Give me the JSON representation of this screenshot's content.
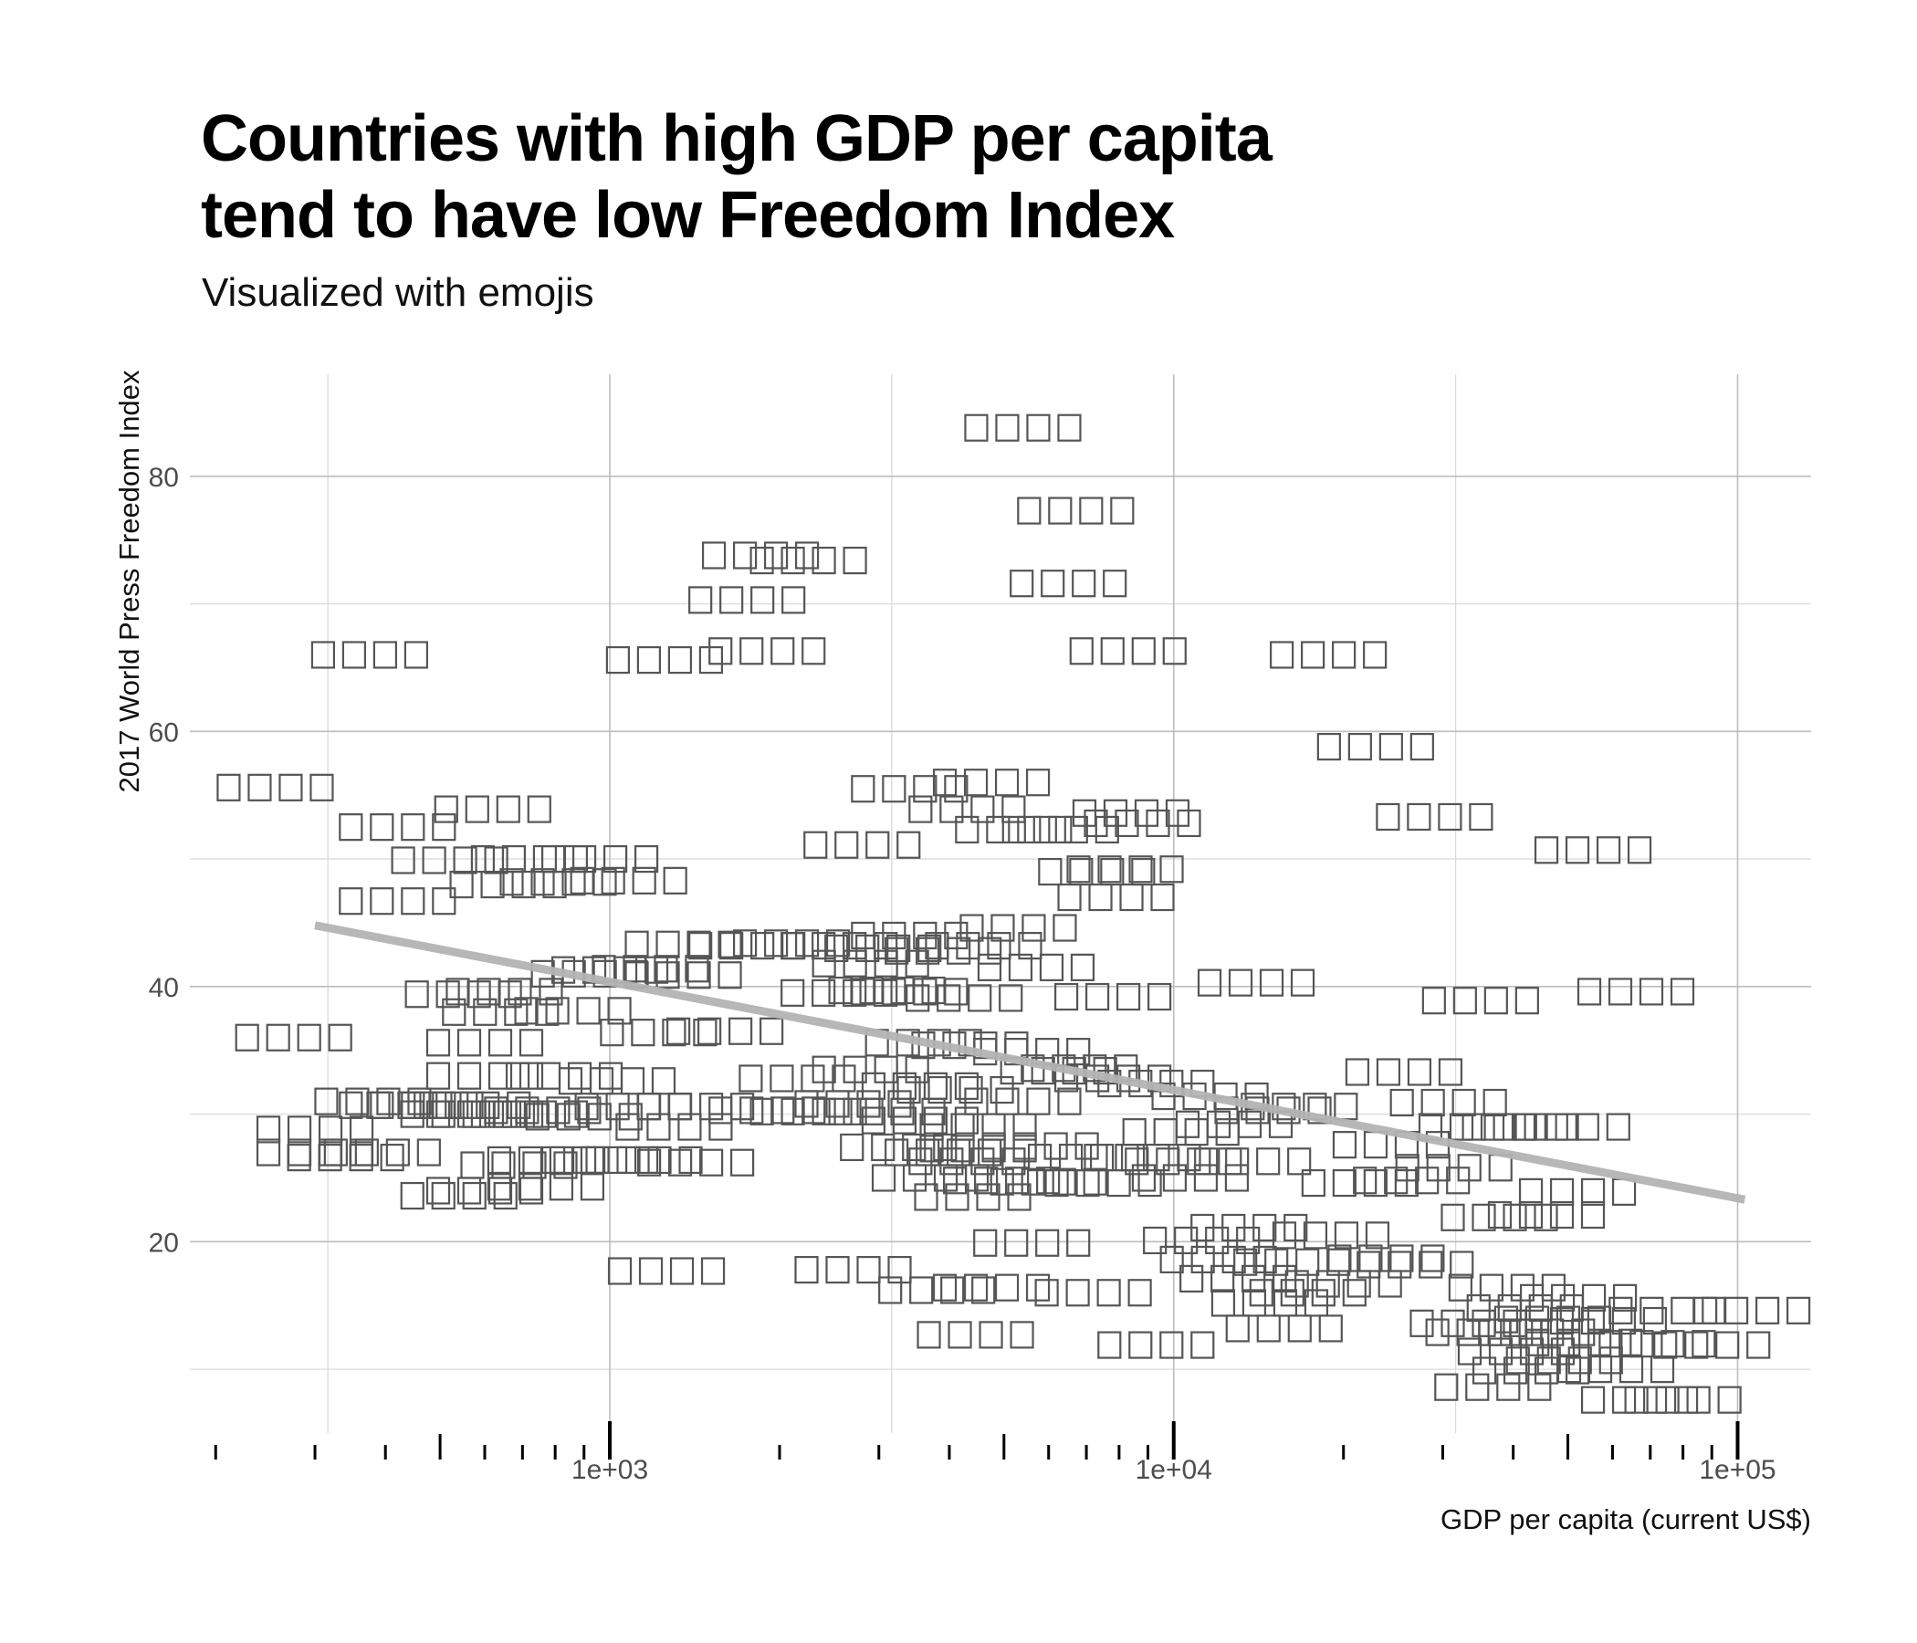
{
  "title_lines": [
    "Countries with high GDP per capita",
    "tend to have low Freedom Index"
  ],
  "subtitle": "Visualized with emojis",
  "chart_data": {
    "type": "scatter",
    "title": "Countries with high GDP per capita tend to have low Freedom Index",
    "subtitle": "Visualized with emojis",
    "xlabel": "GDP per capita (current US$)",
    "ylabel": "2017 World Press Freedom Index",
    "x_scale": "log10",
    "xlim": [
      180,
      135000
    ],
    "ylim": [
      5,
      88
    ],
    "grid": true,
    "legend": "none",
    "marker": "four unrendered emoji glyph boxes per country",
    "x_ticks": [
      {
        "value": 1000,
        "label": "1e+03"
      },
      {
        "value": 10000,
        "label": "1e+04"
      },
      {
        "value": 100000,
        "label": "1e+05"
      }
    ],
    "y_ticks": [
      {
        "value": 20,
        "label": "20"
      },
      {
        "value": 40,
        "label": "40"
      },
      {
        "value": 60,
        "label": "60"
      },
      {
        "value": 80,
        "label": "80"
      }
    ],
    "trend_line": {
      "x": [
        300,
        103000
      ],
      "y": [
        44.8,
        23.3
      ],
      "color": "#b3b3b3"
    },
    "points": [
      {
        "x": 255,
        "y": 55.6
      },
      {
        "x": 375,
        "y": 66.0
      },
      {
        "x": 275,
        "y": 36.0
      },
      {
        "x": 300,
        "y": 28.8
      },
      {
        "x": 300,
        "y": 27.0
      },
      {
        "x": 340,
        "y": 26.6
      },
      {
        "x": 395,
        "y": 27.0
      },
      {
        "x": 420,
        "y": 52.5
      },
      {
        "x": 420,
        "y": 46.7
      },
      {
        "x": 380,
        "y": 31.0
      },
      {
        "x": 420,
        "y": 30.7
      },
      {
        "x": 470,
        "y": 30.7
      },
      {
        "x": 550,
        "y": 39.4
      },
      {
        "x": 520,
        "y": 49.9
      },
      {
        "x": 540,
        "y": 23.6
      },
      {
        "x": 600,
        "y": 24.0
      },
      {
        "x": 570,
        "y": 30.7
      },
      {
        "x": 540,
        "y": 30.0
      },
      {
        "x": 600,
        "y": 35.6
      },
      {
        "x": 620,
        "y": 53.9
      },
      {
        "x": 650,
        "y": 39.6
      },
      {
        "x": 600,
        "y": 33.0
      },
      {
        "x": 600,
        "y": 30.0
      },
      {
        "x": 640,
        "y": 38.0
      },
      {
        "x": 660,
        "y": 48.0
      },
      {
        "x": 720,
        "y": 50.0
      },
      {
        "x": 720,
        "y": 30.0
      },
      {
        "x": 690,
        "y": 26.0
      },
      {
        "x": 810,
        "y": 48.2
      },
      {
        "x": 770,
        "y": 26.4
      },
      {
        "x": 770,
        "y": 24.3
      },
      {
        "x": 760,
        "y": 30.3
      },
      {
        "x": 860,
        "y": 38.1
      },
      {
        "x": 830,
        "y": 33.0
      },
      {
        "x": 920,
        "y": 41.0
      },
      {
        "x": 900,
        "y": 29.8
      },
      {
        "x": 1000,
        "y": 41.3
      },
      {
        "x": 960,
        "y": 26.4
      },
      {
        "x": 960,
        "y": 50.0
      },
      {
        "x": 1080,
        "y": 48.3
      },
      {
        "x": 1030,
        "y": 32.6
      },
      {
        "x": 1180,
        "y": 41.4
      },
      {
        "x": 1100,
        "y": 30.6
      },
      {
        "x": 1150,
        "y": 26.4
      },
      {
        "x": 1220,
        "y": 36.4
      },
      {
        "x": 1260,
        "y": 17.7
      },
      {
        "x": 1300,
        "y": 29.0
      },
      {
        "x": 1250,
        "y": 65.6
      },
      {
        "x": 1350,
        "y": 43.3
      },
      {
        "x": 1350,
        "y": 40.9
      },
      {
        "x": 1420,
        "y": 26.2
      },
      {
        "x": 1420,
        "y": 30.6
      },
      {
        "x": 1600,
        "y": 36.5
      },
      {
        "x": 1750,
        "y": 70.3
      },
      {
        "x": 1750,
        "y": 43.2
      },
      {
        "x": 1850,
        "y": 73.8
      },
      {
        "x": 1900,
        "y": 66.3
      },
      {
        "x": 1900,
        "y": 30.3
      },
      {
        "x": 2250,
        "y": 30.2
      },
      {
        "x": 2100,
        "y": 43.4
      },
      {
        "x": 2150,
        "y": 32.8
      },
      {
        "x": 2250,
        "y": 73.4
      },
      {
        "x": 2550,
        "y": 43.2
      },
      {
        "x": 2550,
        "y": 39.5
      },
      {
        "x": 2700,
        "y": 17.8
      },
      {
        "x": 2700,
        "y": 30.8
      },
      {
        "x": 2800,
        "y": 51.1
      },
      {
        "x": 2900,
        "y": 41.8
      },
      {
        "x": 2900,
        "y": 33.5
      },
      {
        "x": 3050,
        "y": 43.0
      },
      {
        "x": 3100,
        "y": 39.7
      },
      {
        "x": 3100,
        "y": 30.2
      },
      {
        "x": 3250,
        "y": 27.4
      },
      {
        "x": 3400,
        "y": 55.5
      },
      {
        "x": 3400,
        "y": 44.0
      },
      {
        "x": 3400,
        "y": 39.6
      },
      {
        "x": 3550,
        "y": 32.2
      },
      {
        "x": 3550,
        "y": 29.5
      },
      {
        "x": 3600,
        "y": 35.6
      },
      {
        "x": 3700,
        "y": 25.0
      },
      {
        "x": 3800,
        "y": 16.2
      },
      {
        "x": 3900,
        "y": 27.0
      },
      {
        "x": 3900,
        "y": 42.8
      },
      {
        "x": 4100,
        "y": 31.9
      },
      {
        "x": 4250,
        "y": 39.1
      },
      {
        "x": 4300,
        "y": 26.3
      },
      {
        "x": 4300,
        "y": 53.9
      },
      {
        "x": 4350,
        "y": 35.4
      },
      {
        "x": 4400,
        "y": 23.5
      },
      {
        "x": 4450,
        "y": 12.7
      },
      {
        "x": 4500,
        "y": 29.0
      },
      {
        "x": 4500,
        "y": 27.3
      },
      {
        "x": 4600,
        "y": 43.2
      },
      {
        "x": 4750,
        "y": 16.4
      },
      {
        "x": 4750,
        "y": 56.0
      },
      {
        "x": 4950,
        "y": 24.8
      },
      {
        "x": 5200,
        "y": 52.3
      },
      {
        "x": 5300,
        "y": 44.6
      },
      {
        "x": 5400,
        "y": 31.0
      },
      {
        "x": 5400,
        "y": 83.8
      },
      {
        "x": 5600,
        "y": 19.9
      },
      {
        "x": 5700,
        "y": 41.5
      },
      {
        "x": 5600,
        "y": 34.9
      },
      {
        "x": 5800,
        "y": 27.5
      },
      {
        "x": 6000,
        "y": 24.7
      },
      {
        "x": 6250,
        "y": 33.4
      },
      {
        "x": 6300,
        "y": 52.3
      },
      {
        "x": 6500,
        "y": 71.6
      },
      {
        "x": 6700,
        "y": 77.3
      },
      {
        "x": 6800,
        "y": 33.6
      },
      {
        "x": 7000,
        "y": 26.6
      },
      {
        "x": 7200,
        "y": 16.0
      },
      {
        "x": 7300,
        "y": 49.0
      },
      {
        "x": 7500,
        "y": 24.6
      },
      {
        "x": 7800,
        "y": 39.2
      },
      {
        "x": 7800,
        "y": 32.8
      },
      {
        "x": 7900,
        "y": 47.0
      },
      {
        "x": 8200,
        "y": 49.2
      },
      {
        "x": 8300,
        "y": 66.3
      },
      {
        "x": 8400,
        "y": 53.6
      },
      {
        "x": 8800,
        "y": 26.6
      },
      {
        "x": 8800,
        "y": 52.8
      },
      {
        "x": 9300,
        "y": 32.4
      },
      {
        "x": 9300,
        "y": 11.9
      },
      {
        "x": 10300,
        "y": 28.6
      },
      {
        "x": 10400,
        "y": 26.3
      },
      {
        "x": 10700,
        "y": 25.0
      },
      {
        "x": 11200,
        "y": 20.1
      },
      {
        "x": 11600,
        "y": 31.4
      },
      {
        "x": 12000,
        "y": 18.6
      },
      {
        "x": 12800,
        "y": 29.2
      },
      {
        "x": 13000,
        "y": 17.1
      },
      {
        "x": 13600,
        "y": 21.1
      },
      {
        "x": 13800,
        "y": 26.3
      },
      {
        "x": 14000,
        "y": 40.3
      },
      {
        "x": 14800,
        "y": 15.2
      },
      {
        "x": 15000,
        "y": 30.3
      },
      {
        "x": 15700,
        "y": 13.2
      },
      {
        "x": 16200,
        "y": 18.4
      },
      {
        "x": 16700,
        "y": 30.6
      },
      {
        "x": 17300,
        "y": 16.0
      },
      {
        "x": 18800,
        "y": 66.0
      },
      {
        "x": 19000,
        "y": 20.5
      },
      {
        "x": 20000,
        "y": 16.7
      },
      {
        "x": 21400,
        "y": 24.6
      },
      {
        "x": 22800,
        "y": 58.8
      },
      {
        "x": 23800,
        "y": 18.7
      },
      {
        "x": 24300,
        "y": 27.6
      },
      {
        "x": 25600,
        "y": 33.3
      },
      {
        "x": 26400,
        "y": 24.8
      },
      {
        "x": 26800,
        "y": 18.2
      },
      {
        "x": 29000,
        "y": 53.3
      },
      {
        "x": 30700,
        "y": 30.9
      },
      {
        "x": 31400,
        "y": 25.8
      },
      {
        "x": 33300,
        "y": 13.6
      },
      {
        "x": 34500,
        "y": 29.0
      },
      {
        "x": 35000,
        "y": 38.9
      },
      {
        "x": 35500,
        "y": 12.9
      },
      {
        "x": 36800,
        "y": 8.6
      },
      {
        "x": 37800,
        "y": 21.9
      },
      {
        "x": 39000,
        "y": 16.4
      },
      {
        "x": 40500,
        "y": 11.4
      },
      {
        "x": 41200,
        "y": 29.0
      },
      {
        "x": 42000,
        "y": 14.8
      },
      {
        "x": 43000,
        "y": 9.9
      },
      {
        "x": 44000,
        "y": 12.9
      },
      {
        "x": 45800,
        "y": 22.1
      },
      {
        "x": 47000,
        "y": 13.9
      },
      {
        "x": 49300,
        "y": 10.7
      },
      {
        "x": 50800,
        "y": 29.0
      },
      {
        "x": 52000,
        "y": 23.9
      },
      {
        "x": 52200,
        "y": 15.6
      },
      {
        "x": 53400,
        "y": 12.1
      },
      {
        "x": 55400,
        "y": 50.7
      },
      {
        "x": 59000,
        "y": 13.8
      },
      {
        "x": 60800,
        "y": 10.0
      },
      {
        "x": 66000,
        "y": 39.6
      },
      {
        "x": 67000,
        "y": 7.6
      },
      {
        "x": 72000,
        "y": 12.0
      },
      {
        "x": 75000,
        "y": 14.6
      },
      {
        "x": 80000,
        "y": 7.6
      },
      {
        "x": 106000,
        "y": 14.6
      },
      {
        "x": 90000,
        "y": 11.9
      }
    ]
  }
}
